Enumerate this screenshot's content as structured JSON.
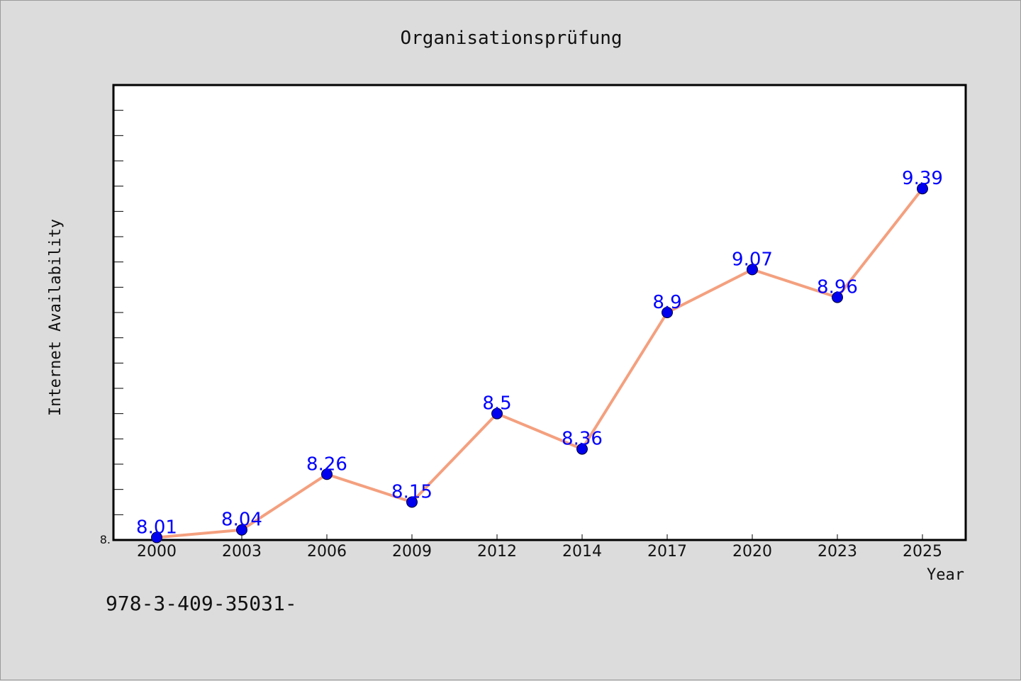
{
  "chart_data": {
    "type": "line",
    "title": "Organisationsprüfung",
    "xlabel": "Year",
    "ylabel": "Internet Availability",
    "categories": [
      "2000",
      "2003",
      "2006",
      "2009",
      "2012",
      "2014",
      "2017",
      "2020",
      "2023",
      "2025"
    ],
    "series": [
      {
        "values": [
          8.01,
          8.04,
          8.26,
          8.15,
          8.5,
          8.36,
          8.9,
          9.07,
          8.96,
          9.39
        ],
        "data_labels": [
          "8.01",
          "8.04",
          "8.26",
          "8.15",
          "8.5",
          "8.36",
          "8.9",
          "9.07",
          "8.96",
          "9.39"
        ]
      }
    ],
    "ylim": [
      8.0,
      9.8
    ],
    "y_tick_label": "8.",
    "grid": false,
    "legend": "none",
    "colors": {
      "line": "#f4a07f",
      "marker": "#0000ee",
      "label": "#0000ff",
      "frame": "#000000",
      "plot_bg": "#ffffff"
    }
  },
  "footer": {
    "isbn": "978-3-409-35031-"
  }
}
